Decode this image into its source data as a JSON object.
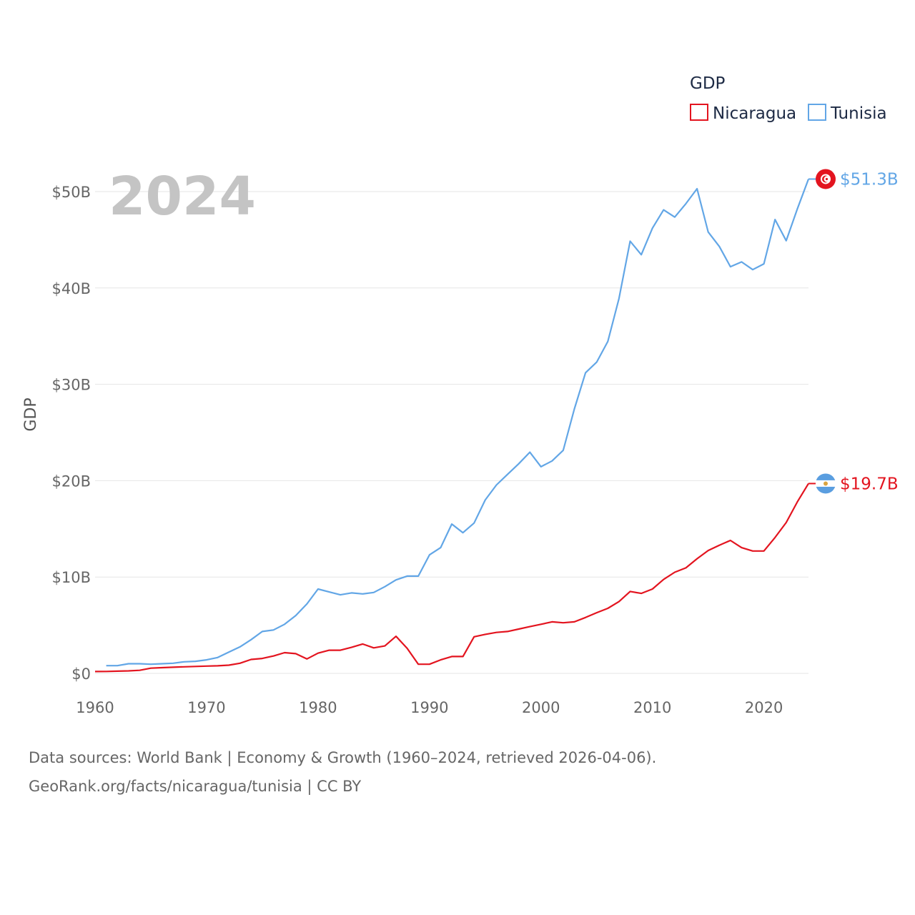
{
  "colors": {
    "nicaragua": "#e3141f",
    "tunisia": "#62a6e6",
    "grid": "#e6e6e6",
    "text": "#666666"
  },
  "chart_data": {
    "type": "line",
    "title": "GDP",
    "year_label": "2024",
    "ylabel": "GDP",
    "xlabel": "",
    "xlim": [
      1960,
      2024
    ],
    "ylim": [
      0,
      50
    ],
    "x_ticks": [
      {
        "value": 1960,
        "label": "1960"
      },
      {
        "value": 1970,
        "label": "1970"
      },
      {
        "value": 1980,
        "label": "1980"
      },
      {
        "value": 1990,
        "label": "1990"
      },
      {
        "value": 2000,
        "label": "2000"
      },
      {
        "value": 2010,
        "label": "2010"
      },
      {
        "value": 2020,
        "label": "2020"
      }
    ],
    "y_ticks": [
      {
        "value": 0,
        "label": "$0"
      },
      {
        "value": 10,
        "label": "$10B"
      },
      {
        "value": 20,
        "label": "$20B"
      },
      {
        "value": 30,
        "label": "$30B"
      },
      {
        "value": 40,
        "label": "$40B"
      },
      {
        "value": 50,
        "label": "$50B"
      }
    ],
    "units": "billion USD",
    "legend": {
      "title": "GDP",
      "position": "top-right"
    },
    "series": [
      {
        "name": "Nicaragua",
        "key": "nicaragua",
        "color": "#e3141f",
        "end_label": "$19.7B",
        "flag_icon": "nicaragua-flag-icon",
        "x": [
          1960,
          1961,
          1962,
          1963,
          1964,
          1965,
          1966,
          1967,
          1968,
          1969,
          1970,
          1971,
          1972,
          1973,
          1974,
          1975,
          1976,
          1977,
          1978,
          1979,
          1980,
          1981,
          1982,
          1983,
          1984,
          1985,
          1986,
          1987,
          1988,
          1989,
          1990,
          1991,
          1992,
          1993,
          1994,
          1995,
          1996,
          1997,
          1998,
          1999,
          2000,
          2001,
          2002,
          2003,
          2004,
          2005,
          2006,
          2007,
          2008,
          2009,
          2010,
          2011,
          2012,
          2013,
          2014,
          2015,
          2016,
          2017,
          2018,
          2019,
          2020,
          2021,
          2022,
          2023,
          2024
        ],
        "values": [
          0.19,
          0.2,
          0.23,
          0.26,
          0.32,
          0.54,
          0.59,
          0.64,
          0.68,
          0.72,
          0.76,
          0.79,
          0.85,
          1.05,
          1.45,
          1.55,
          1.8,
          2.15,
          2.05,
          1.5,
          2.1,
          2.4,
          2.4,
          2.7,
          3.05,
          2.65,
          2.85,
          3.85,
          2.6,
          0.95,
          0.95,
          1.4,
          1.75,
          1.75,
          3.8,
          4.05,
          4.25,
          4.35,
          4.6,
          4.85,
          5.1,
          5.35,
          5.25,
          5.35,
          5.8,
          6.3,
          6.75,
          7.45,
          8.5,
          8.3,
          8.75,
          9.75,
          10.5,
          10.95,
          11.9,
          12.75,
          13.3,
          13.8,
          13.05,
          12.7,
          12.7,
          14.1,
          15.65,
          17.8,
          19.7
        ]
      },
      {
        "name": "Tunisia",
        "key": "tunisia",
        "color": "#62a6e6",
        "end_label": "$51.3B",
        "flag_icon": "tunisia-flag-icon",
        "x": [
          1961,
          1962,
          1963,
          1964,
          1965,
          1966,
          1967,
          1968,
          1969,
          1970,
          1971,
          1972,
          1973,
          1974,
          1975,
          1976,
          1977,
          1978,
          1979,
          1980,
          1981,
          1982,
          1983,
          1984,
          1985,
          1986,
          1987,
          1988,
          1989,
          1990,
          1991,
          1992,
          1993,
          1994,
          1995,
          1996,
          1997,
          1998,
          1999,
          2000,
          2001,
          2002,
          2003,
          2004,
          2005,
          2006,
          2007,
          2008,
          2009,
          2010,
          2011,
          2012,
          2013,
          2014,
          2015,
          2016,
          2017,
          2018,
          2019,
          2020,
          2021,
          2022,
          2023,
          2024
        ],
        "values": [
          0.8,
          0.8,
          1.0,
          1.0,
          0.95,
          1.0,
          1.05,
          1.2,
          1.25,
          1.4,
          1.65,
          2.2,
          2.75,
          3.5,
          4.35,
          4.5,
          5.1,
          6.0,
          7.2,
          8.75,
          8.45,
          8.15,
          8.35,
          8.25,
          8.4,
          9.0,
          9.7,
          10.1,
          10.1,
          12.3,
          13.05,
          15.5,
          14.6,
          15.6,
          18.0,
          19.55,
          20.65,
          21.75,
          22.95,
          21.45,
          22.05,
          23.15,
          27.45,
          31.2,
          32.3,
          34.45,
          38.9,
          44.85,
          43.45,
          46.2,
          48.1,
          47.35,
          48.75,
          50.3,
          45.8,
          44.3,
          42.2,
          42.7,
          41.9,
          42.5,
          47.1,
          44.9,
          48.2,
          51.3
        ]
      }
    ]
  },
  "footer": {
    "line1": "Data sources: World Bank | Economy & Growth (1960–2024, retrieved 2026-04-06).",
    "line2": "GeoRank.org/facts/nicaragua/tunisia | CC BY"
  }
}
